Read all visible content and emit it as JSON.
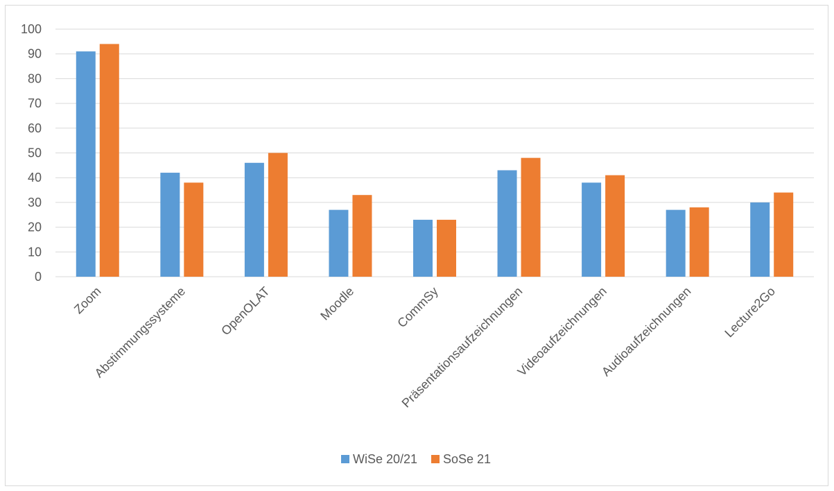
{
  "chart_data": {
    "type": "bar",
    "title": "",
    "xlabel": "",
    "ylabel": "",
    "ylim": [
      0,
      100
    ],
    "ytick_step": 10,
    "grid": true,
    "legend_position": "bottom",
    "categories": [
      "Zoom",
      "Abstimmungssysteme",
      "OpenOLAT",
      "Moodle",
      "CommSy",
      "Präsentationsaufzeichnungen",
      "Videoaufzeichnungen",
      "Audioaufzeichnungen",
      "Lecture2Go"
    ],
    "series": [
      {
        "name": "WiSe 20/21",
        "color": "#5b9bd5",
        "values": [
          91,
          42,
          46,
          27,
          23,
          43,
          38,
          27,
          30
        ]
      },
      {
        "name": "SoSe 21",
        "color": "#ed7d31",
        "values": [
          94,
          38,
          50,
          33,
          23,
          48,
          41,
          28,
          34
        ]
      }
    ]
  },
  "colors": {
    "gridline": "#d9d9d9",
    "text": "#595959"
  }
}
